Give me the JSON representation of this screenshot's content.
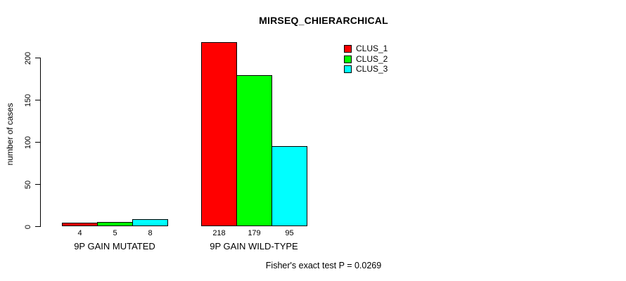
{
  "chart_data": {
    "type": "bar",
    "title": "MIRSEQ_CHIERARCHICAL",
    "ylabel": "number of cases",
    "xlabel": "",
    "categories": [
      "9P GAIN MUTATED",
      "9P GAIN WILD-TYPE"
    ],
    "series": [
      {
        "name": "CLUS_1",
        "color": "#ff0000",
        "values": [
          4,
          218
        ]
      },
      {
        "name": "CLUS_2",
        "color": "#00ff00",
        "values": [
          5,
          179
        ]
      },
      {
        "name": "CLUS_3",
        "color": "#00ffff",
        "values": [
          8,
          95
        ]
      }
    ],
    "bar_value_labels": [
      [
        "4",
        "5",
        "8"
      ],
      [
        "218",
        "179",
        "95"
      ]
    ],
    "yticks": [
      0,
      50,
      100,
      150,
      200
    ],
    "ylim": [
      0,
      200
    ],
    "grid": false,
    "legend_position": "top-right-inside",
    "annotation": "Fisher's exact test P = 0.0269"
  }
}
